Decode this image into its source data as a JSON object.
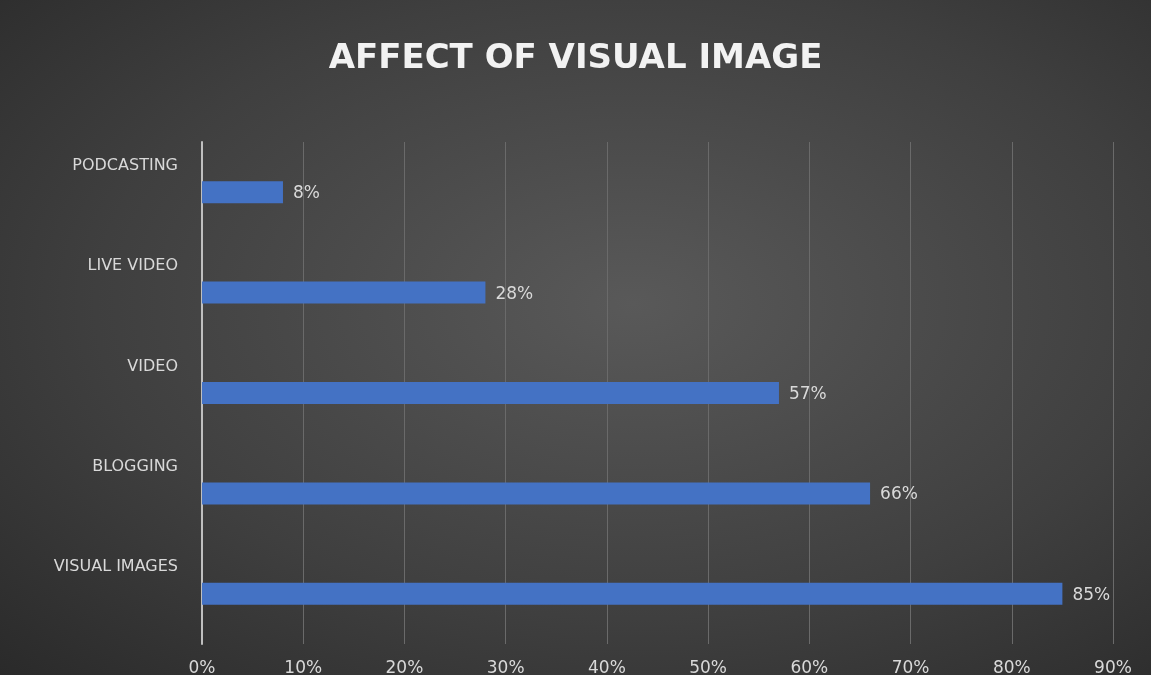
{
  "chart_data": {
    "type": "bar",
    "orientation": "horizontal",
    "title": "AFFECT OF VISUAL IMAGE",
    "categories": [
      "PODCASTING",
      "LIVE VIDEO",
      "VIDEO",
      "BLOGGING",
      "VISUAL IMAGES"
    ],
    "values": [
      8,
      28,
      57,
      66,
      85
    ],
    "value_labels": [
      "8%",
      "28%",
      "57%",
      "66%",
      "85%"
    ],
    "color": "#4472c4",
    "xlim": [
      0,
      90
    ],
    "xticks": [
      {
        "value": 0,
        "label": "0%"
      },
      {
        "value": 10,
        "label": "10%"
      },
      {
        "value": 20,
        "label": "20%"
      },
      {
        "value": 30,
        "label": "30%"
      },
      {
        "value": 40,
        "label": "40%"
      },
      {
        "value": 50,
        "label": "50%"
      },
      {
        "value": 60,
        "label": "60%"
      },
      {
        "value": 70,
        "label": "70%"
      },
      {
        "value": 80,
        "label": "80%"
      },
      {
        "value": 90,
        "label": "90%"
      }
    ],
    "grid": "x"
  }
}
